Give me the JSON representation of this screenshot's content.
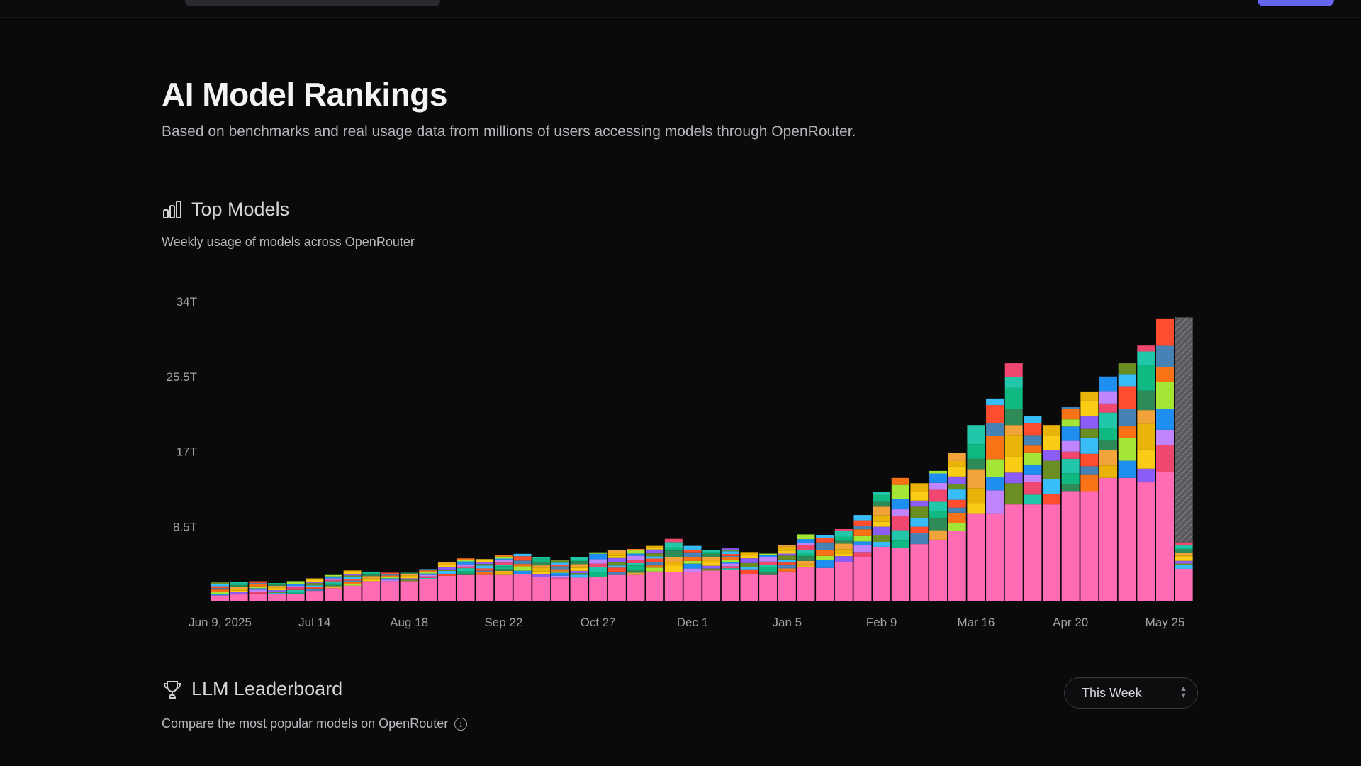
{
  "page": {
    "title": "AI Model Rankings",
    "subtitle": "Based on benchmarks and real usage data from millions of users accessing models through OpenRouter."
  },
  "top_models": {
    "title": "Top Models",
    "icon": "bar-chart-icon",
    "description": "Weekly usage of models across OpenRouter"
  },
  "leaderboard": {
    "title": "LLM Leaderboard",
    "icon": "trophy-icon",
    "description": "Compare the most popular models on OpenRouter",
    "info_icon": "info-icon",
    "period_select": {
      "value": "This Week"
    }
  },
  "colors": {
    "background": "#0a0a0b",
    "accent": "#6466f1",
    "pink": "#ff6bb5"
  },
  "chart_data": {
    "type": "bar",
    "stacked": true,
    "ytick_labels": [
      "8.5T",
      "17T",
      "25.5T",
      "34T"
    ],
    "ytick_values": [
      8.5,
      17,
      25.5,
      34
    ],
    "ylim": [
      0,
      34
    ],
    "xtick_labels": [
      "Jun 9, 2025",
      "Jul 14",
      "Aug 18",
      "Sep 22",
      "Oct 27",
      "Dec 1",
      "Jan 5",
      "Feb 9",
      "Mar 16",
      "Apr 20",
      "May 25"
    ],
    "xtick_every": 5,
    "grid": false,
    "legend": "none",
    "weekly_totals_T": [
      2.1,
      2.2,
      2.3,
      2.0,
      2.3,
      2.5,
      3.0,
      3.4,
      3.3,
      3.2,
      3.2,
      3.7,
      4.5,
      4.8,
      4.8,
      5.3,
      5.4,
      5.0,
      4.7,
      5.0,
      5.5,
      5.8,
      5.9,
      6.2,
      7.1,
      6.3,
      5.8,
      5.9,
      5.6,
      5.4,
      6.4,
      7.6,
      7.5,
      8.2,
      9.8,
      12.4,
      14.0,
      13.4,
      14.8,
      16.8,
      20.0,
      23.0,
      27.0,
      21.0,
      20.0,
      22.0,
      23.8,
      25.5,
      27.0,
      29.0,
      32.0,
      32.2
    ],
    "pink_series_T": [
      0.7,
      0.8,
      0.9,
      0.8,
      0.9,
      1.2,
      1.5,
      1.8,
      2.3,
      2.3,
      2.3,
      2.5,
      2.9,
      3.0,
      3.0,
      3.0,
      3.1,
      2.8,
      2.5,
      2.7,
      2.8,
      3.0,
      3.0,
      3.4,
      3.3,
      3.3,
      3.5,
      3.6,
      3.1,
      3.0,
      3.4,
      3.9,
      3.8,
      4.5,
      5.0,
      6.2,
      6.1,
      6.5,
      7.0,
      8.0,
      10.0,
      10.0,
      11.0,
      11.0,
      11.0,
      12.5,
      12.5,
      14.0,
      14.0,
      13.5,
      14.7,
      3.7
    ]
  }
}
